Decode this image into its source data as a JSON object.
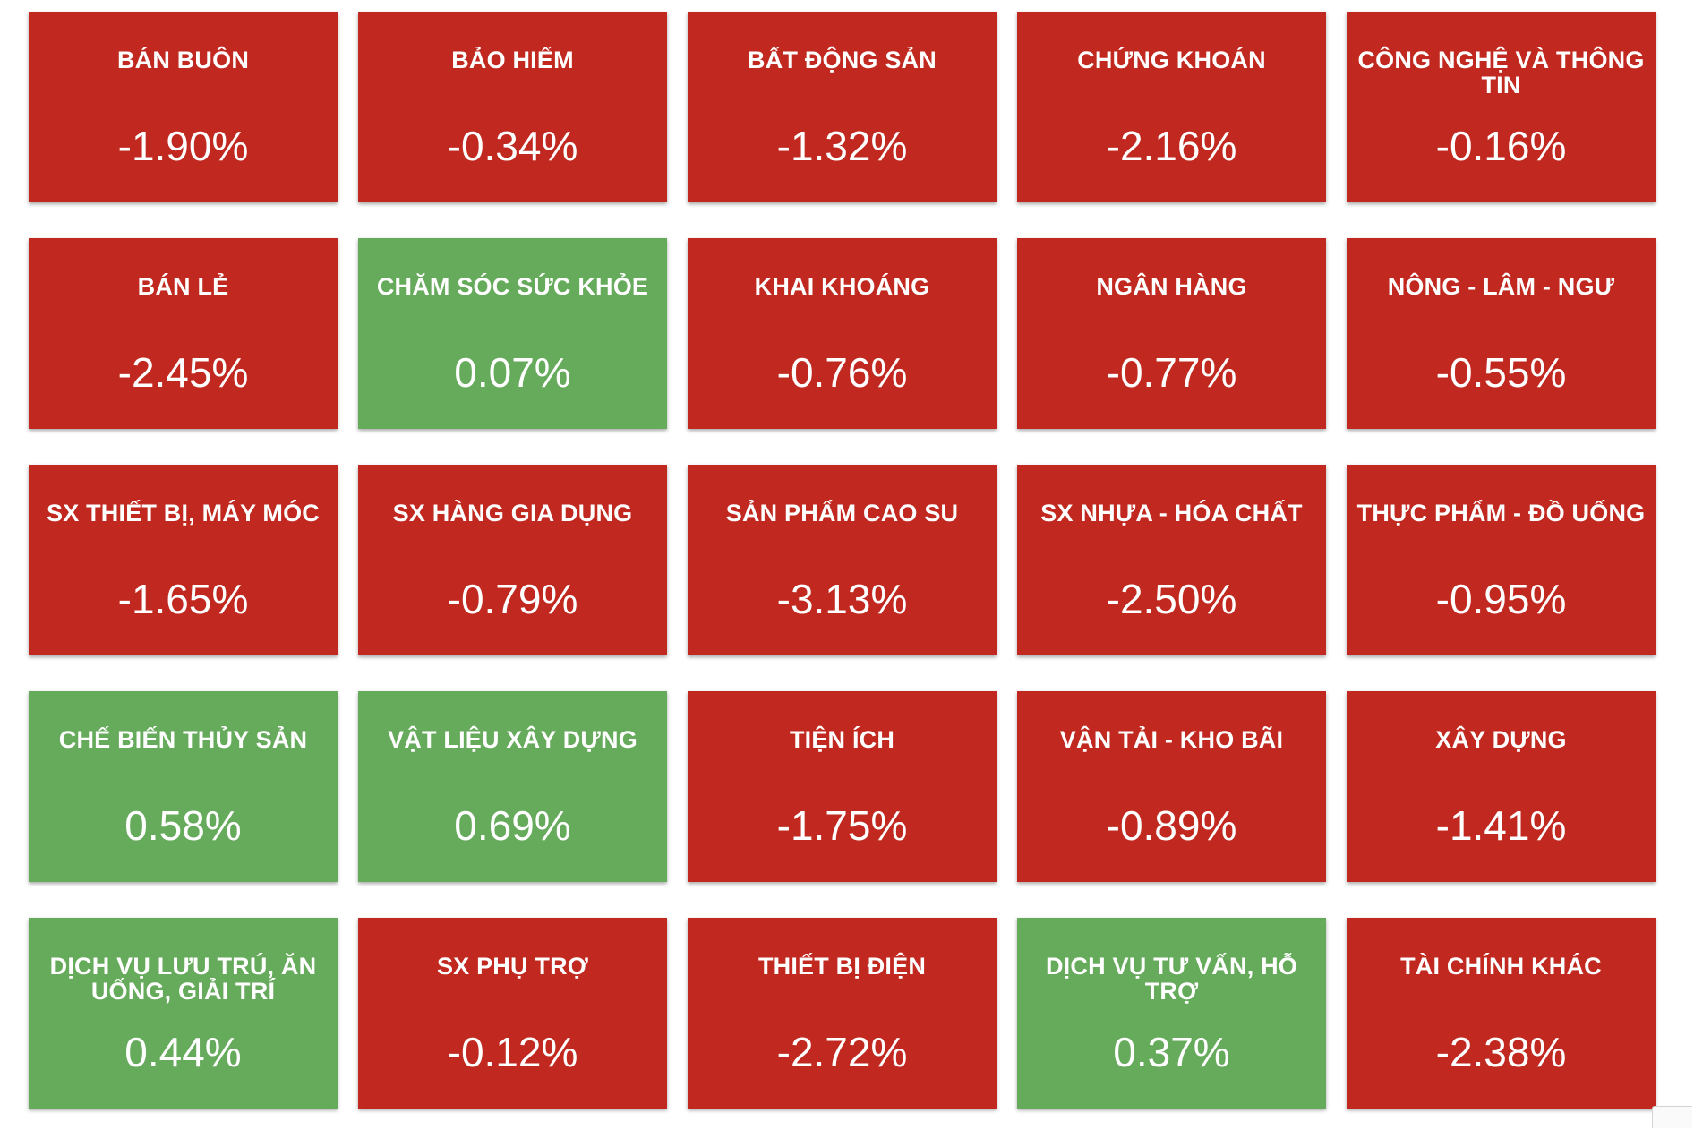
{
  "colors": {
    "down": "#c1281f",
    "up": "#66ab5c",
    "text": "#ffffff"
  },
  "sectors": [
    {
      "name": "BÁN BUÔN",
      "value": "-1.90%",
      "trend": "down"
    },
    {
      "name": "BẢO HIỂM",
      "value": "-0.34%",
      "trend": "down"
    },
    {
      "name": "BẤT ĐỘNG SẢN",
      "value": "-1.32%",
      "trend": "down"
    },
    {
      "name": "CHỨNG KHOÁN",
      "value": "-2.16%",
      "trend": "down"
    },
    {
      "name": "CÔNG NGHỆ VÀ THÔNG TIN",
      "value": "-0.16%",
      "trend": "down"
    },
    {
      "name": "BÁN LẺ",
      "value": "-2.45%",
      "trend": "down"
    },
    {
      "name": "CHĂM SÓC SỨC KHỎE",
      "value": "0.07%",
      "trend": "up"
    },
    {
      "name": "KHAI KHOÁNG",
      "value": "-0.76%",
      "trend": "down"
    },
    {
      "name": "NGÂN HÀNG",
      "value": "-0.77%",
      "trend": "down"
    },
    {
      "name": "NÔNG - LÂM - NGƯ",
      "value": "-0.55%",
      "trend": "down"
    },
    {
      "name": "SX THIẾT BỊ, MÁY MÓC",
      "value": "-1.65%",
      "trend": "down"
    },
    {
      "name": "SX HÀNG GIA DỤNG",
      "value": "-0.79%",
      "trend": "down"
    },
    {
      "name": "SẢN PHẨM CAO SU",
      "value": "-3.13%",
      "trend": "down"
    },
    {
      "name": "SX NHỰA - HÓA CHẤT",
      "value": "-2.50%",
      "trend": "down"
    },
    {
      "name": "THỰC PHẨM - ĐỒ UỐNG",
      "value": "-0.95%",
      "trend": "down"
    },
    {
      "name": "CHẾ BIẾN THỦY SẢN",
      "value": "0.58%",
      "trend": "up"
    },
    {
      "name": "VẬT LIỆU XÂY DỰNG",
      "value": "0.69%",
      "trend": "up"
    },
    {
      "name": "TIỆN ÍCH",
      "value": "-1.75%",
      "trend": "down"
    },
    {
      "name": "VẬN TẢI - KHO BÃI",
      "value": "-0.89%",
      "trend": "down"
    },
    {
      "name": "XÂY DỰNG",
      "value": "-1.41%",
      "trend": "down"
    },
    {
      "name": "DỊCH VỤ LƯU TRÚ, ĂN UỐNG, GIẢI TRÍ",
      "value": "0.44%",
      "trend": "up"
    },
    {
      "name": "SX PHỤ TRỢ",
      "value": "-0.12%",
      "trend": "down"
    },
    {
      "name": "THIẾT BỊ ĐIỆN",
      "value": "-2.72%",
      "trend": "down"
    },
    {
      "name": "DỊCH VỤ TƯ VẤN, HỖ TRỢ",
      "value": "0.37%",
      "trend": "up"
    },
    {
      "name": "TÀI CHÍNH KHÁC",
      "value": "-2.38%",
      "trend": "down"
    }
  ]
}
